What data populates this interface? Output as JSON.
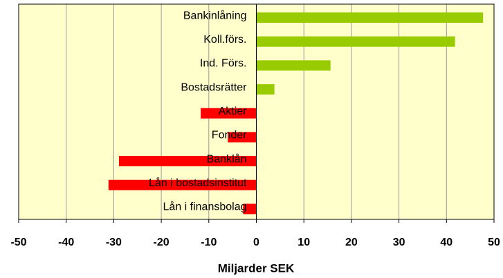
{
  "chart_data": {
    "type": "hbar",
    "x_label": "Miljarder SEK",
    "categories": [
      "Bankinlåning",
      "Koll.förs.",
      "Ind. Förs.",
      "Bostadsrätter",
      "Aktier",
      "Fonder",
      "Banklån",
      "Lån i bostadsinstitut",
      "Lån i finansbolag"
    ],
    "values": [
      47.7,
      41.8,
      15.6,
      3.8,
      -11.7,
      -6,
      -28.9,
      -31.1,
      -2.8
    ],
    "positive_color": "#99cc00",
    "negative_color": "#ff0000",
    "xlim": [
      -50,
      50
    ],
    "xticks": [
      -50,
      -40,
      -30,
      -20,
      -10,
      0,
      10,
      20,
      30,
      40,
      50
    ],
    "grid": true
  }
}
